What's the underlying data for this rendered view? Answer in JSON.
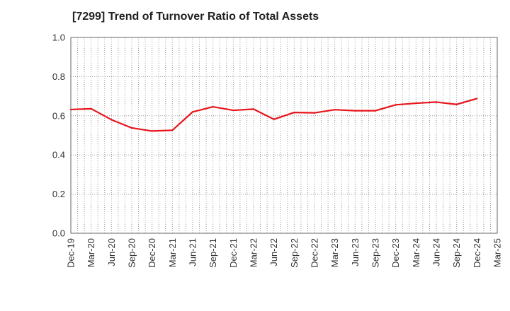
{
  "chart_data": {
    "type": "line",
    "title": "[7299]  Trend of Turnover Ratio of Total Assets",
    "xlabel": "",
    "ylabel": "",
    "ylim": [
      0.0,
      1.0
    ],
    "yticks": [
      "0.0",
      "0.2",
      "0.4",
      "0.6",
      "0.8",
      "1.0"
    ],
    "x_ticks": [
      "Dec-19",
      "Mar-20",
      "Jun-20",
      "Sep-20",
      "Dec-20",
      "Mar-21",
      "Jun-21",
      "Sep-21",
      "Dec-21",
      "Mar-22",
      "Jun-22",
      "Sep-22",
      "Dec-22",
      "Mar-23",
      "Jun-23",
      "Sep-23",
      "Dec-23",
      "Mar-24",
      "Jun-24",
      "Sep-24",
      "Dec-24",
      "Mar-25"
    ],
    "grid": true,
    "legend": "none",
    "series": [
      {
        "color": "#e8141b",
        "x": [
          "Dec-19",
          "Mar-20",
          "Jun-20",
          "Sep-20",
          "Dec-20",
          "Mar-21",
          "Jun-21",
          "Sep-21",
          "Dec-21",
          "Mar-22",
          "Jun-22",
          "Sep-22",
          "Dec-22",
          "Mar-23",
          "Jun-23",
          "Sep-23",
          "Dec-23",
          "Mar-24",
          "Jun-24",
          "Sep-24",
          "Dec-24"
        ],
        "values": [
          0.632,
          0.636,
          0.58,
          0.538,
          0.522,
          0.526,
          0.62,
          0.646,
          0.628,
          0.634,
          0.582,
          0.617,
          0.615,
          0.631,
          0.626,
          0.626,
          0.656,
          0.664,
          0.67,
          0.658,
          0.688
        ]
      }
    ]
  }
}
